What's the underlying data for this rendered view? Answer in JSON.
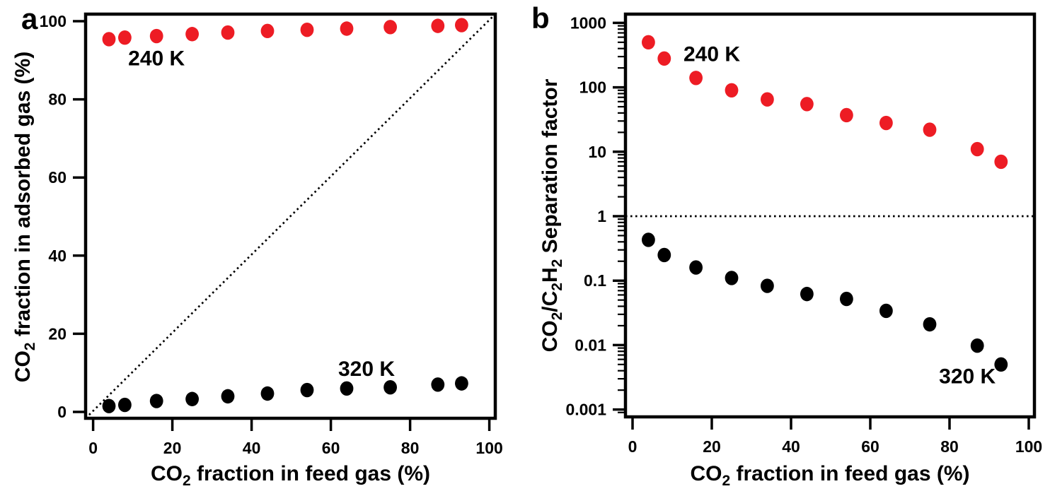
{
  "colors": {
    "background": "#ffffff",
    "red_series": "#ed1c24",
    "black_series": "#000000",
    "frame": "#000000"
  },
  "chart_data": [
    {
      "type": "scatter",
      "panel_letter": "a",
      "title": "",
      "xlabel": "CO2 fraction in feed gas (%)",
      "xlabel_parts": [
        {
          "t": "CO"
        },
        {
          "t": "2",
          "sub": true
        },
        {
          "t": " fraction in feed gas (%)"
        }
      ],
      "ylabel": "CO2 fraction in adsorbed gas (%)",
      "ylabel_parts": [
        {
          "t": "CO"
        },
        {
          "t": "2",
          "sub": true
        },
        {
          "t": " fraction in adsorbed gas (%)"
        }
      ],
      "x_scale": "linear",
      "y_scale": "linear",
      "x_ticks": [
        0,
        20,
        40,
        60,
        80,
        100
      ],
      "x_tick_labels": [
        "0",
        "20",
        "40",
        "60",
        "80",
        "100"
      ],
      "y_ticks": [
        0,
        20,
        40,
        60,
        80,
        100
      ],
      "y_tick_labels": [
        "0",
        "20",
        "40",
        "60",
        "80",
        "100"
      ],
      "xlim": [
        -1.9,
        101.6
      ],
      "ylim": [
        -1.6,
        101.8
      ],
      "grid": false,
      "legend": "none (inline series labels)",
      "x": [
        4,
        8,
        16,
        25,
        34,
        44,
        54,
        64,
        75,
        87,
        93
      ],
      "series": [
        {
          "name": "240 K",
          "color": "#ed1c24",
          "values": [
            95.4,
            95.8,
            96.2,
            96.7,
            97.1,
            97.5,
            97.8,
            98.1,
            98.5,
            98.8,
            99.0
          ]
        },
        {
          "name": "320 K",
          "color": "#000000",
          "values": [
            1.5,
            1.8,
            2.8,
            3.3,
            4.0,
            4.7,
            5.6,
            6.0,
            6.3,
            7.0,
            7.3
          ]
        }
      ],
      "reference_line": {
        "kind": "diagonal",
        "desc": "y = x parity line",
        "style": "dotted"
      },
      "annotations": [
        {
          "text": "240 K",
          "color": "#ed1c24",
          "x": 16,
          "y": 90.5
        },
        {
          "text": "320 K",
          "color": "#000000",
          "x": 69,
          "y": 11
        }
      ]
    },
    {
      "type": "scatter",
      "panel_letter": "b",
      "title": "",
      "xlabel": "CO2 fraction in feed gas (%)",
      "xlabel_parts": [
        {
          "t": "CO"
        },
        {
          "t": "2",
          "sub": true
        },
        {
          "t": " fraction in feed gas (%)"
        }
      ],
      "ylabel": "CO2/C2H2 Separation factor",
      "ylabel_parts": [
        {
          "t": "CO"
        },
        {
          "t": "2",
          "sub": true
        },
        {
          "t": "/C"
        },
        {
          "t": "2",
          "sub": true
        },
        {
          "t": "H"
        },
        {
          "t": "2",
          "sub": true
        },
        {
          "t": " Separation factor"
        }
      ],
      "x_scale": "linear",
      "y_scale": "log",
      "x_ticks": [
        0,
        20,
        40,
        60,
        80,
        100
      ],
      "x_tick_labels": [
        "0",
        "20",
        "40",
        "60",
        "80",
        "100"
      ],
      "y_ticks": [
        1000,
        100,
        10,
        1,
        0.1,
        0.01,
        0.001
      ],
      "y_tick_labels": [
        "1000",
        "100",
        "10",
        "1",
        "0.1",
        "0.01",
        "0.001"
      ],
      "xlim": [
        -1.9,
        101.4
      ],
      "ylim": [
        0.00077,
        1360
      ],
      "grid": false,
      "legend": "none (inline series labels)",
      "x": [
        4,
        8,
        16,
        25,
        34,
        44,
        54,
        64,
        75,
        87,
        93
      ],
      "series": [
        {
          "name": "240 K",
          "color": "#ed1c24",
          "values": [
            500,
            280,
            140,
            90,
            65,
            55,
            37,
            28,
            22,
            11,
            7
          ]
        },
        {
          "name": "320 K",
          "color": "#000000",
          "values": [
            0.43,
            0.25,
            0.16,
            0.11,
            0.083,
            0.062,
            0.052,
            0.034,
            0.021,
            0.0098,
            0.005
          ]
        }
      ],
      "reference_line": {
        "kind": "horizontal",
        "y": 1,
        "desc": "separation factor = 1",
        "style": "dotted"
      },
      "annotations": [
        {
          "text": "240 K",
          "color": "#ed1c24",
          "x": 20,
          "y": 330
        },
        {
          "text": "320 K",
          "color": "#000000",
          "x": 84.5,
          "y": 0.0033
        }
      ]
    }
  ]
}
